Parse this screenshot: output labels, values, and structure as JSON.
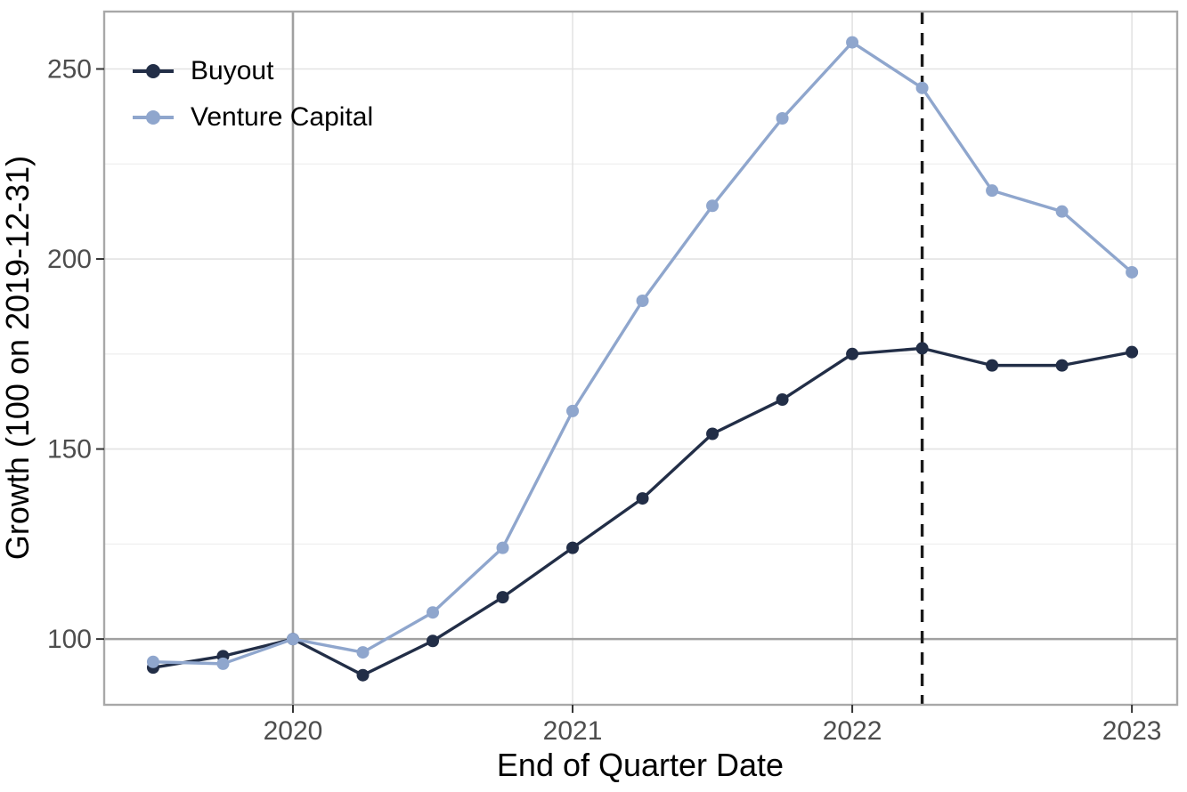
{
  "chart_data": {
    "type": "line",
    "title": "",
    "xlabel": "End of Quarter Date",
    "ylabel": "Growth (100 on 2019-12-31)",
    "x_dates": [
      "2019-06-30",
      "2019-09-30",
      "2019-12-31",
      "2020-03-31",
      "2020-06-30",
      "2020-09-30",
      "2020-12-31",
      "2021-03-31",
      "2021-06-30",
      "2021-09-30",
      "2021-12-31",
      "2022-03-31",
      "2022-06-30",
      "2022-09-30",
      "2022-12-31"
    ],
    "x": [
      2019.5,
      2019.75,
      2020,
      2020.25,
      2020.5,
      2020.75,
      2021,
      2021.25,
      2021.5,
      2021.75,
      2022,
      2022.25,
      2022.5,
      2022.75,
      2023
    ],
    "series": [
      {
        "name": "Buyout",
        "color": "#222e47",
        "values": [
          92.5,
          95.5,
          100,
          90.5,
          99.5,
          111,
          124,
          137,
          154,
          163,
          175,
          176.5,
          172,
          172,
          175.5
        ]
      },
      {
        "name": "Venture Capital",
        "color": "#8fa6cd",
        "values": [
          94,
          93.5,
          100,
          96.5,
          107,
          124,
          160,
          189,
          214,
          237,
          257,
          245,
          218,
          212.5,
          196.5
        ]
      }
    ],
    "x_axis": {
      "ticks": [
        2020,
        2021,
        2022,
        2023
      ],
      "labels": [
        "2020",
        "2021",
        "2022",
        "2023"
      ]
    },
    "y_axis": {
      "ticks": [
        100,
        150,
        200,
        250
      ],
      "labels": [
        "100",
        "150",
        "200",
        "250"
      ]
    },
    "x_range": [
      2019.325,
      2023.162
    ],
    "y_range": [
      82.7,
      265.1
    ],
    "grid": {
      "y_major": [
        150,
        200,
        250
      ],
      "y_minor": [
        125,
        175,
        225
      ],
      "x_major": [
        2021,
        2022,
        2023
      ]
    },
    "reference_lines": [
      {
        "axis": "y",
        "value": 100,
        "style": "solid",
        "color": "#a0a0a0"
      },
      {
        "axis": "x",
        "value": 2020,
        "style": "solid",
        "color": "#a0a0a0"
      },
      {
        "axis": "x",
        "value": 2022.25,
        "style": "dashed",
        "color": "#1a1a1a"
      }
    ],
    "legend_position": "top-left-inside",
    "grid_on": true
  },
  "legend": {
    "items": [
      {
        "label": "Buyout",
        "color": "#222e47"
      },
      {
        "label": "Venture Capital",
        "color": "#8fa6cd"
      }
    ]
  },
  "colors": {
    "background": "#ffffff",
    "panel_border": "#a8a8a8",
    "grid_major": "#e3e3e3",
    "grid_minor": "#efefef",
    "reference_gray": "#a0a0a0",
    "dashed_line": "#1a1a1a",
    "tick_label": "#4d4d4d",
    "axis_title": "#000000",
    "tick_mark": "#333333"
  }
}
